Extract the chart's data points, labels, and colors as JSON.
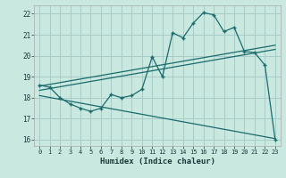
{
  "xlabel": "Humidex (Indice chaleur)",
  "bg_color": "#c8e8e0",
  "grid_color": "#a8ccc8",
  "line_color": "#1a6b6b",
  "xlim": [
    -0.5,
    23.5
  ],
  "ylim": [
    15.7,
    22.4
  ],
  "yticks": [
    16,
    17,
    18,
    19,
    20,
    21,
    22
  ],
  "xticks": [
    0,
    1,
    2,
    3,
    4,
    5,
    6,
    7,
    8,
    9,
    10,
    11,
    12,
    13,
    14,
    15,
    16,
    17,
    18,
    19,
    20,
    21,
    22,
    23
  ],
  "main_x": [
    0,
    1,
    2,
    3,
    4,
    5,
    6,
    7,
    8,
    9,
    10,
    11,
    12,
    13,
    14,
    15,
    16,
    17,
    18,
    19,
    20,
    21,
    22,
    23
  ],
  "main_y": [
    18.6,
    18.5,
    18.0,
    17.7,
    17.5,
    17.35,
    17.5,
    18.15,
    18.0,
    18.1,
    18.4,
    19.95,
    19.0,
    21.1,
    20.85,
    21.55,
    22.05,
    21.95,
    21.15,
    21.35,
    20.2,
    20.15,
    19.55,
    16.0
  ],
  "line1_x": [
    0,
    23
  ],
  "line1_y": [
    18.55,
    20.5
  ],
  "line2_x": [
    0,
    23
  ],
  "line2_y": [
    18.35,
    20.3
  ],
  "line3_x": [
    0,
    23
  ],
  "line3_y": [
    18.1,
    16.05
  ]
}
